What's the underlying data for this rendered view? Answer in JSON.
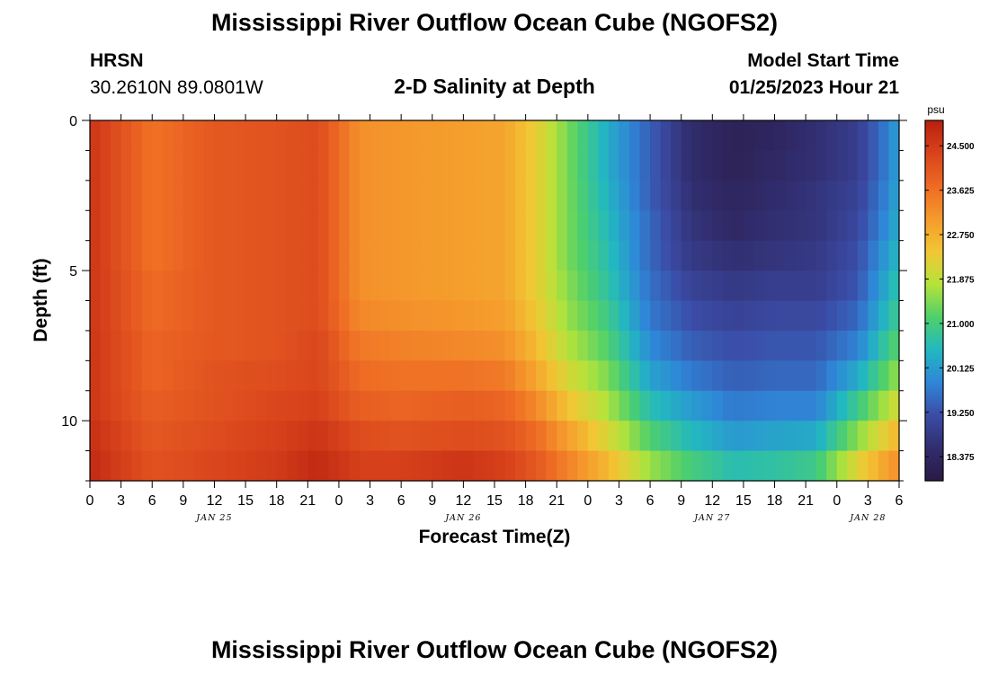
{
  "header": {
    "title": "Mississippi River Outflow Ocean Cube (NGOFS2)",
    "station": "HRSN",
    "coords": "30.2610N  89.0801W",
    "subtitle": "2-D Salinity at Depth",
    "start_label": "Model Start Time",
    "start_value": "01/25/2023 Hour 21"
  },
  "footer": {
    "title": "Mississippi River Outflow Ocean Cube (NGOFS2)"
  },
  "chart_data": {
    "type": "heatmap",
    "title": "2-D Salinity at Depth",
    "xlabel": "Forecast Time(Z)",
    "ylabel": "Depth (ft)",
    "x_range_hours": [
      0,
      78
    ],
    "x_tick_step_hours": 3,
    "x_tick_labels": [
      "0",
      "3",
      "6",
      "9",
      "12",
      "15",
      "18",
      "21",
      "0",
      "3",
      "6",
      "9",
      "12",
      "15",
      "18",
      "21",
      "0",
      "3",
      "6",
      "9",
      "12",
      "15",
      "18",
      "21",
      "0",
      "3",
      "6"
    ],
    "date_labels": [
      {
        "label": "JAN 25",
        "hour": 12
      },
      {
        "label": "JAN 26",
        "hour": 36
      },
      {
        "label": "JAN 27",
        "hour": 60
      },
      {
        "label": "JAN 28",
        "hour": 75
      }
    ],
    "ylim": [
      0,
      12
    ],
    "y_ticks": [
      0,
      5,
      10
    ],
    "y_inverted": true,
    "colorbar": {
      "unit": "psu",
      "min": 17.9,
      "max": 25.0,
      "tick_labels": [
        "24.500",
        "23.625",
        "22.750",
        "21.875",
        "21.000",
        "20.125",
        "19.250",
        "18.375"
      ],
      "tick_values": [
        24.5,
        23.625,
        22.75,
        21.875,
        21.0,
        20.125,
        19.25,
        18.375
      ],
      "colors": [
        "#2a1a45",
        "#312d6e",
        "#3b4ca6",
        "#2f86d8",
        "#22b8c0",
        "#4fd06a",
        "#b5e33a",
        "#f2c634",
        "#f59a2c",
        "#ee6a24",
        "#d8431c",
        "#b8200e"
      ]
    },
    "depth_levels_ft": [
      0.5,
      1.5,
      2.5,
      3.5,
      4.5,
      5.5,
      6.5,
      7.5,
      8.5,
      9.5,
      10.5,
      11.5
    ],
    "series": [
      {
        "hour": 0,
        "values": [
          24.6,
          24.6,
          24.6,
          24.6,
          24.6,
          24.6,
          24.6,
          24.6,
          24.6,
          24.6,
          24.7,
          24.8
        ]
      },
      {
        "hour": 6,
        "values": [
          23.6,
          23.6,
          23.6,
          23.6,
          23.6,
          23.7,
          23.7,
          23.8,
          23.8,
          23.9,
          24.0,
          24.1
        ]
      },
      {
        "hour": 12,
        "values": [
          24.0,
          24.0,
          24.0,
          24.0,
          24.0,
          24.0,
          24.0,
          24.0,
          24.1,
          24.1,
          24.2,
          24.3
        ]
      },
      {
        "hour": 18,
        "values": [
          24.1,
          24.1,
          24.1,
          24.1,
          24.1,
          24.1,
          24.1,
          24.1,
          24.2,
          24.3,
          24.4,
          24.5
        ]
      },
      {
        "hour": 22,
        "values": [
          24.2,
          24.2,
          24.2,
          24.2,
          24.2,
          24.2,
          24.2,
          24.3,
          24.3,
          24.4,
          24.6,
          24.8
        ]
      },
      {
        "hour": 26,
        "values": [
          23.2,
          23.2,
          23.2,
          23.2,
          23.2,
          23.2,
          23.3,
          23.5,
          23.7,
          23.9,
          24.2,
          24.4
        ]
      },
      {
        "hour": 30,
        "values": [
          23.1,
          23.1,
          23.1,
          23.1,
          23.1,
          23.1,
          23.2,
          23.4,
          23.6,
          23.8,
          24.1,
          24.4
        ]
      },
      {
        "hour": 36,
        "values": [
          23.0,
          23.0,
          23.0,
          23.0,
          23.0,
          23.0,
          23.1,
          23.3,
          23.6,
          23.9,
          24.2,
          24.6
        ]
      },
      {
        "hour": 40,
        "values": [
          22.9,
          22.9,
          22.9,
          22.9,
          22.9,
          22.9,
          23.0,
          23.2,
          23.5,
          23.8,
          24.1,
          24.4
        ]
      },
      {
        "hour": 43,
        "values": [
          22.3,
          22.3,
          22.3,
          22.3,
          22.3,
          22.3,
          22.4,
          22.6,
          22.9,
          23.3,
          23.7,
          24.0
        ]
      },
      {
        "hour": 46,
        "values": [
          21.4,
          21.4,
          21.4,
          21.4,
          21.4,
          21.5,
          21.6,
          21.8,
          22.1,
          22.5,
          23.0,
          23.4
        ]
      },
      {
        "hour": 50,
        "values": [
          20.3,
          20.3,
          20.4,
          20.5,
          20.6,
          20.7,
          20.9,
          21.1,
          21.4,
          21.7,
          22.1,
          22.6
        ]
      },
      {
        "hour": 54,
        "values": [
          19.4,
          19.4,
          19.4,
          19.5,
          19.5,
          19.6,
          19.7,
          19.9,
          20.2,
          20.6,
          21.1,
          21.6
        ]
      },
      {
        "hour": 58,
        "values": [
          18.5,
          18.5,
          18.6,
          18.7,
          18.8,
          19.0,
          19.2,
          19.4,
          19.7,
          20.1,
          20.5,
          21.0
        ]
      },
      {
        "hour": 62,
        "values": [
          18.2,
          18.2,
          18.3,
          18.4,
          18.6,
          18.8,
          19.0,
          19.2,
          19.4,
          19.7,
          20.1,
          20.6
        ]
      },
      {
        "hour": 66,
        "values": [
          18.3,
          18.4,
          18.5,
          18.6,
          18.7,
          18.9,
          19.1,
          19.3,
          19.5,
          19.8,
          20.2,
          20.7
        ]
      },
      {
        "hour": 70,
        "values": [
          18.6,
          18.6,
          18.7,
          18.7,
          18.8,
          18.9,
          19.1,
          19.3,
          19.5,
          19.8,
          20.3,
          20.9
        ]
      },
      {
        "hour": 74,
        "values": [
          18.9,
          18.9,
          19.0,
          19.1,
          19.2,
          19.3,
          19.5,
          19.8,
          20.3,
          20.9,
          21.5,
          22.2
        ]
      },
      {
        "hour": 77,
        "values": [
          19.8,
          19.8,
          19.9,
          20.0,
          20.2,
          20.4,
          20.6,
          20.9,
          21.3,
          21.8,
          22.4,
          23.0
        ]
      },
      {
        "hour": 78,
        "values": [
          20.2,
          20.2,
          20.3,
          20.4,
          20.5,
          20.7,
          20.9,
          21.2,
          21.6,
          22.1,
          22.7,
          23.2
        ]
      }
    ]
  }
}
